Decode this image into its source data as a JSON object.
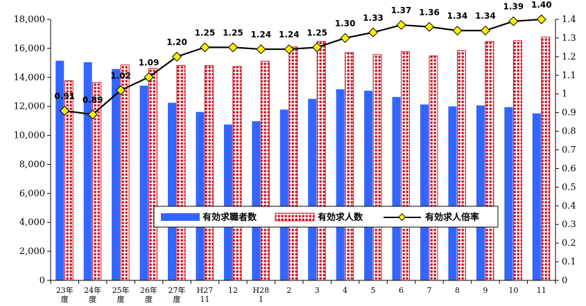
{
  "chart_data": {
    "type": "bar",
    "categories": [
      [
        "23年",
        "度"
      ],
      [
        "24年",
        "度"
      ],
      [
        "25年",
        "度"
      ],
      [
        "26年",
        "度"
      ],
      [
        "27年",
        "度"
      ],
      [
        "H27",
        "11"
      ],
      [
        "12"
      ],
      [
        "H28",
        "1"
      ],
      [
        "2"
      ],
      [
        "3"
      ],
      [
        "4"
      ],
      [
        "5"
      ],
      [
        "6"
      ],
      [
        "7"
      ],
      [
        "8"
      ],
      [
        "9"
      ],
      [
        "10"
      ],
      [
        "11"
      ]
    ],
    "series": [
      {
        "name": "有効求職者数",
        "kind": "bar",
        "axis": "left",
        "color": "#3366ff",
        "values": [
          15150,
          15050,
          14580,
          13430,
          12250,
          11620,
          10750,
          10980,
          11780,
          12520,
          13180,
          13080,
          12650,
          12130,
          12000,
          12070,
          11950,
          11520
        ]
      },
      {
        "name": "有効求人数",
        "kind": "bar",
        "axis": "left",
        "color": "#cc1122",
        "values": [
          13770,
          13650,
          14860,
          14620,
          14830,
          14820,
          14750,
          15120,
          16100,
          16480,
          15710,
          15570,
          15770,
          15480,
          15850,
          16470,
          16530,
          16780
        ]
      },
      {
        "name": "有効求人倍率",
        "kind": "line",
        "axis": "right",
        "color": "#000000",
        "marker_color": "#ffee00",
        "values": [
          0.91,
          0.89,
          1.02,
          1.09,
          1.2,
          1.25,
          1.25,
          1.24,
          1.24,
          1.25,
          1.3,
          1.33,
          1.37,
          1.36,
          1.34,
          1.34,
          1.39,
          1.4
        ],
        "labels": [
          "0.91",
          "0.89",
          "1.02",
          "1.09",
          "1.20",
          "1.25",
          "1.25",
          "1.24",
          "1.24",
          "1.25",
          "1.30",
          "1.33",
          "1.37",
          "1.36",
          "1.34",
          "1.34",
          "1.39",
          "1.40"
        ]
      }
    ],
    "y_left": {
      "ylim": [
        0,
        18000
      ],
      "ticks": [
        "0",
        "2,000",
        "4,000",
        "6,000",
        "8,000",
        "10,000",
        "12,000",
        "14,000",
        "16,000",
        "18,000"
      ]
    },
    "y_right": {
      "ylim": [
        0,
        1.4
      ],
      "ticks": [
        "0",
        "0.1",
        "0.2",
        "0.3",
        "0.4",
        "0.5",
        "0.6",
        "0.7",
        "0.8",
        "0.9",
        "1",
        "1.1",
        "1.2",
        "1.3",
        "1.4"
      ]
    },
    "grid": false,
    "legend": {
      "position": "center",
      "entries": [
        "有効求職者数",
        "有効求人数",
        "有効求人倍率"
      ]
    }
  }
}
